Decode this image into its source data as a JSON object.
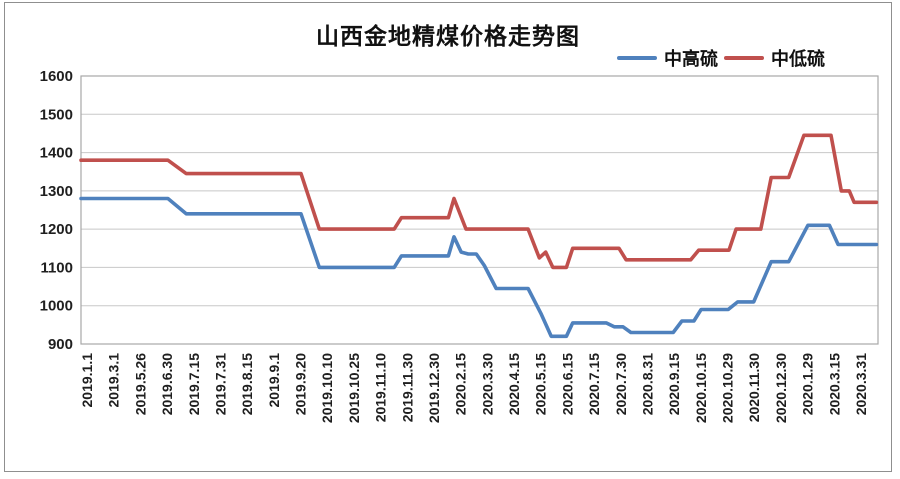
{
  "frame": {
    "border_color": "#8f8f8f",
    "background": "#ffffff"
  },
  "chart_data": {
    "type": "line",
    "title": "山西金地精煤价格走势图",
    "xlabel": "",
    "ylabel": "",
    "ylim": [
      900,
      1600
    ],
    "yticks": [
      1600,
      1500,
      1400,
      1300,
      1200,
      1100,
      1000,
      900
    ],
    "grid": "horizontal",
    "grid_color": "#c8c8c8",
    "plot_border_color": "#a8a8a8",
    "axis_text_color": "#1f1f1f",
    "legend_position": "top-right",
    "categories": [
      "2019.1.1",
      "2019.3.1",
      "2019.5.26",
      "2019.6.30",
      "2019.7.15",
      "2019.7.31",
      "2019.8.15",
      "2019.9.1",
      "2019.9.20",
      "2019.10.10",
      "2019.10.25",
      "2019.11.10",
      "2019.11.30",
      "2019.12.30",
      "2020.2.15",
      "2020.3.30",
      "2020.4.15",
      "2020.5.15",
      "2020.6.15",
      "2020.7.15",
      "2020.7.30",
      "2020.8.31",
      "2020.9.15",
      "2020.10.15",
      "2020.10.29",
      "2020.11.30",
      "2020.12.30",
      "2020.1.29",
      "2020.3.15",
      "2020.3.31"
    ],
    "series": [
      {
        "name": "中高硫",
        "color": "#4F81BD",
        "values": [
          1280,
          1280,
          1280,
          1280,
          1240,
          1240,
          1240,
          1240,
          1240,
          1100,
          1100,
          1100,
          1130,
          1130,
          1180,
          1105,
          1040,
          980,
          920,
          955,
          945,
          930,
          960,
          990,
          1010,
          1010,
          1115,
          1210,
          1160,
          1160
        ],
        "vertices": [
          [
            0,
            1280
          ],
          [
            10.9,
            1280
          ],
          [
            13.2,
            1240
          ],
          [
            27.6,
            1240
          ],
          [
            29.9,
            1100
          ],
          [
            39.3,
            1100
          ],
          [
            40.2,
            1130
          ],
          [
            46.1,
            1130
          ],
          [
            46.8,
            1180
          ],
          [
            47.7,
            1140
          ],
          [
            48.6,
            1135
          ],
          [
            49.6,
            1135
          ],
          [
            50.6,
            1105
          ],
          [
            52.1,
            1045
          ],
          [
            56.1,
            1045
          ],
          [
            57.7,
            980
          ],
          [
            59.0,
            920
          ],
          [
            60.9,
            920
          ],
          [
            61.7,
            955
          ],
          [
            65.9,
            955
          ],
          [
            66.9,
            945
          ],
          [
            68.0,
            945
          ],
          [
            69.0,
            930
          ],
          [
            74.3,
            930
          ],
          [
            75.4,
            960
          ],
          [
            76.9,
            960
          ],
          [
            77.8,
            990
          ],
          [
            81.2,
            990
          ],
          [
            82.4,
            1010
          ],
          [
            84.4,
            1010
          ],
          [
            86.6,
            1115
          ],
          [
            88.8,
            1115
          ],
          [
            91.2,
            1210
          ],
          [
            93.9,
            1210
          ],
          [
            95.0,
            1160
          ],
          [
            99.8,
            1160
          ]
        ]
      },
      {
        "name": "中低硫",
        "color": "#C0504D",
        "values": [
          1380,
          1380,
          1380,
          1380,
          1345,
          1345,
          1345,
          1345,
          1345,
          1200,
          1200,
          1200,
          1230,
          1230,
          1280,
          1200,
          1200,
          1125,
          1100,
          1150,
          1120,
          1120,
          1120,
          1145,
          1145,
          1200,
          1335,
          1445,
          1300,
          1270
        ],
        "vertices": [
          [
            0,
            1380
          ],
          [
            10.9,
            1380
          ],
          [
            13.2,
            1345
          ],
          [
            27.6,
            1345
          ],
          [
            29.9,
            1200
          ],
          [
            39.3,
            1200
          ],
          [
            40.2,
            1230
          ],
          [
            46.1,
            1230
          ],
          [
            46.8,
            1280
          ],
          [
            48.3,
            1200
          ],
          [
            56.1,
            1200
          ],
          [
            57.5,
            1125
          ],
          [
            58.3,
            1140
          ],
          [
            59.2,
            1100
          ],
          [
            60.9,
            1100
          ],
          [
            61.7,
            1150
          ],
          [
            67.5,
            1150
          ],
          [
            68.4,
            1120
          ],
          [
            76.5,
            1120
          ],
          [
            77.5,
            1145
          ],
          [
            81.3,
            1145
          ],
          [
            82.2,
            1200
          ],
          [
            85.3,
            1200
          ],
          [
            86.6,
            1335
          ],
          [
            88.8,
            1335
          ],
          [
            90.7,
            1445
          ],
          [
            94.1,
            1445
          ],
          [
            95.4,
            1300
          ],
          [
            96.4,
            1300
          ],
          [
            97.0,
            1270
          ],
          [
            99.8,
            1270
          ]
        ]
      }
    ]
  }
}
